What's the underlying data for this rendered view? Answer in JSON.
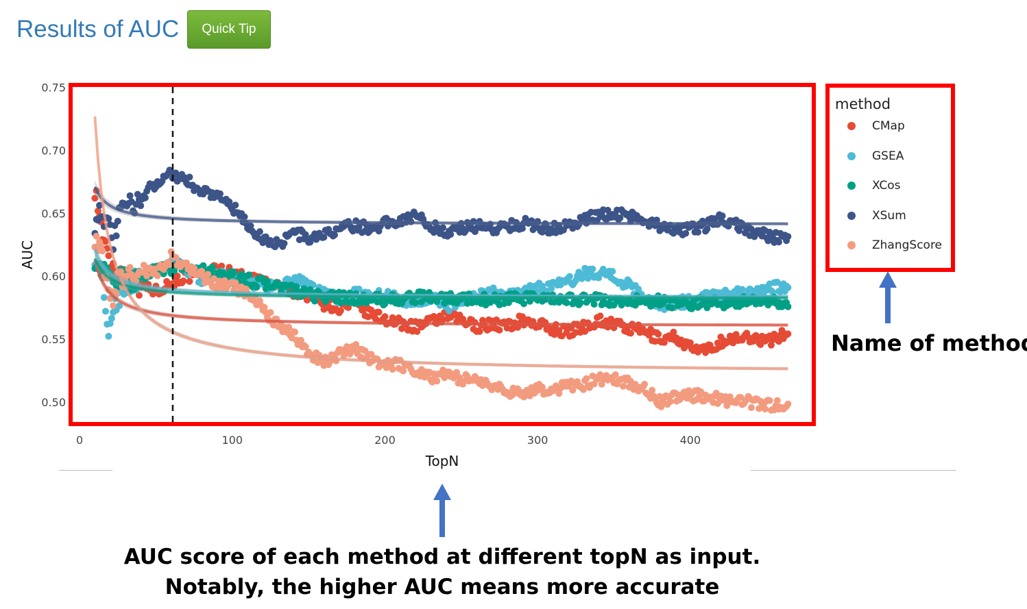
{
  "header": {
    "title": "Results of AUC",
    "quick_tip_label": "Quick Tip"
  },
  "annotations": {
    "legend_note": "Name of method",
    "auc_note_line1": "AUC score of each method at different topN as input.",
    "auc_note_line2": "Notably, the higher AUC means more accurate"
  },
  "colors": {
    "highlight_box": "#ff0000",
    "arrow": "#4472c4",
    "title": "#337ab7",
    "button": "#6aab32"
  },
  "chart_data": {
    "type": "scatter",
    "xlabel": "TopN",
    "ylabel": "AUC",
    "xlim": [
      -5,
      480
    ],
    "ylim": [
      0.483,
      0.752
    ],
    "x_ticks": [
      0,
      100,
      200,
      300,
      400
    ],
    "x_tick_labels": [
      "0",
      "100",
      "200",
      "300",
      "400"
    ],
    "y_ticks": [
      0.5,
      0.55,
      0.6,
      0.65,
      0.7,
      0.75
    ],
    "y_tick_labels": [
      "0.50",
      "0.55",
      "0.60",
      "0.65",
      "0.70",
      "0.75"
    ],
    "grid": false,
    "legend_title": "method",
    "legend_position": "right",
    "vline": {
      "x": 61,
      "style": "dashed"
    },
    "series": [
      {
        "name": "CMap",
        "color": "#e64b35",
        "points": [
          [
            10,
            0.671
          ],
          [
            14,
            0.64
          ],
          [
            18,
            0.615
          ],
          [
            24,
            0.605
          ],
          [
            30,
            0.598
          ],
          [
            40,
            0.593
          ],
          [
            50,
            0.588
          ],
          [
            60,
            0.595
          ],
          [
            70,
            0.6
          ],
          [
            80,
            0.598
          ],
          [
            90,
            0.607
          ],
          [
            100,
            0.602
          ],
          [
            110,
            0.598
          ],
          [
            120,
            0.596
          ],
          [
            130,
            0.592
          ],
          [
            140,
            0.588
          ],
          [
            150,
            0.585
          ],
          [
            160,
            0.578
          ],
          [
            170,
            0.575
          ],
          [
            180,
            0.577
          ],
          [
            190,
            0.57
          ],
          [
            200,
            0.566
          ],
          [
            210,
            0.562
          ],
          [
            220,
            0.56
          ],
          [
            230,
            0.563
          ],
          [
            240,
            0.568
          ],
          [
            250,
            0.565
          ],
          [
            260,
            0.56
          ],
          [
            270,
            0.562
          ],
          [
            280,
            0.56
          ],
          [
            290,
            0.565
          ],
          [
            300,
            0.562
          ],
          [
            310,
            0.558
          ],
          [
            320,
            0.556
          ],
          [
            330,
            0.56
          ],
          [
            340,
            0.565
          ],
          [
            350,
            0.562
          ],
          [
            360,
            0.558
          ],
          [
            370,
            0.556
          ],
          [
            380,
            0.55
          ],
          [
            390,
            0.552
          ],
          [
            400,
            0.543
          ],
          [
            410,
            0.54
          ],
          [
            420,
            0.548
          ],
          [
            430,
            0.55
          ],
          [
            440,
            0.552
          ],
          [
            450,
            0.548
          ],
          [
            460,
            0.553
          ],
          [
            464,
            0.553
          ]
        ],
        "fit": {
          "a": 0.56,
          "b": 0.53
        }
      },
      {
        "name": "GSEA",
        "color": "#4dbbd5",
        "points": [
          [
            10,
            0.618
          ],
          [
            14,
            0.603
          ],
          [
            18,
            0.555
          ],
          [
            22,
            0.572
          ],
          [
            26,
            0.585
          ],
          [
            30,
            0.592
          ],
          [
            40,
            0.598
          ],
          [
            50,
            0.605
          ],
          [
            60,
            0.61
          ],
          [
            70,
            0.606
          ],
          [
            80,
            0.597
          ],
          [
            90,
            0.601
          ],
          [
            100,
            0.597
          ],
          [
            110,
            0.596
          ],
          [
            120,
            0.592
          ],
          [
            130,
            0.59
          ],
          [
            140,
            0.598
          ],
          [
            150,
            0.592
          ],
          [
            160,
            0.587
          ],
          [
            170,
            0.582
          ],
          [
            180,
            0.586
          ],
          [
            190,
            0.584
          ],
          [
            200,
            0.585
          ],
          [
            210,
            0.582
          ],
          [
            220,
            0.578
          ],
          [
            230,
            0.584
          ],
          [
            240,
            0.576
          ],
          [
            250,
            0.58
          ],
          [
            260,
            0.585
          ],
          [
            270,
            0.587
          ],
          [
            280,
            0.584
          ],
          [
            290,
            0.588
          ],
          [
            300,
            0.59
          ],
          [
            310,
            0.593
          ],
          [
            320,
            0.595
          ],
          [
            330,
            0.602
          ],
          [
            340,
            0.603
          ],
          [
            350,
            0.6
          ],
          [
            360,
            0.592
          ],
          [
            370,
            0.584
          ],
          [
            380,
            0.577
          ],
          [
            390,
            0.579
          ],
          [
            400,
            0.58
          ],
          [
            410,
            0.583
          ],
          [
            420,
            0.585
          ],
          [
            430,
            0.586
          ],
          [
            440,
            0.588
          ],
          [
            450,
            0.59
          ],
          [
            460,
            0.592
          ],
          [
            464,
            0.592
          ]
        ],
        "fit": {
          "a": 0.583,
          "b": 0.38
        }
      },
      {
        "name": "XCos",
        "color": "#00a087",
        "points": [
          [
            10,
            0.615
          ],
          [
            14,
            0.605
          ],
          [
            18,
            0.6
          ],
          [
            24,
            0.598
          ],
          [
            30,
            0.596
          ],
          [
            40,
            0.6
          ],
          [
            50,
            0.606
          ],
          [
            60,
            0.605
          ],
          [
            70,
            0.608
          ],
          [
            80,
            0.605
          ],
          [
            90,
            0.602
          ],
          [
            100,
            0.599
          ],
          [
            110,
            0.597
          ],
          [
            120,
            0.594
          ],
          [
            130,
            0.592
          ],
          [
            140,
            0.588
          ],
          [
            150,
            0.585
          ],
          [
            160,
            0.584
          ],
          [
            170,
            0.583
          ],
          [
            180,
            0.582
          ],
          [
            190,
            0.582
          ],
          [
            200,
            0.581
          ],
          [
            210,
            0.582
          ],
          [
            220,
            0.583
          ],
          [
            230,
            0.584
          ],
          [
            240,
            0.582
          ],
          [
            250,
            0.582
          ],
          [
            260,
            0.582
          ],
          [
            270,
            0.581
          ],
          [
            280,
            0.582
          ],
          [
            290,
            0.582
          ],
          [
            300,
            0.582
          ],
          [
            310,
            0.581
          ],
          [
            320,
            0.582
          ],
          [
            330,
            0.581
          ],
          [
            340,
            0.581
          ],
          [
            350,
            0.58
          ],
          [
            360,
            0.58
          ],
          [
            370,
            0.58
          ],
          [
            380,
            0.58
          ],
          [
            390,
            0.578
          ],
          [
            400,
            0.578
          ],
          [
            410,
            0.579
          ],
          [
            420,
            0.579
          ],
          [
            430,
            0.579
          ],
          [
            440,
            0.58
          ],
          [
            450,
            0.579
          ],
          [
            460,
            0.579
          ],
          [
            464,
            0.579
          ]
        ],
        "fit": {
          "a": 0.582,
          "b": 0.32
        }
      },
      {
        "name": "XSum",
        "color": "#3c5488",
        "points": [
          [
            10,
            0.643
          ],
          [
            14,
            0.655
          ],
          [
            18,
            0.64
          ],
          [
            22,
            0.627
          ],
          [
            26,
            0.648
          ],
          [
            30,
            0.655
          ],
          [
            40,
            0.66
          ],
          [
            50,
            0.675
          ],
          [
            60,
            0.682
          ],
          [
            70,
            0.676
          ],
          [
            80,
            0.668
          ],
          [
            90,
            0.665
          ],
          [
            100,
            0.655
          ],
          [
            110,
            0.64
          ],
          [
            120,
            0.63
          ],
          [
            130,
            0.625
          ],
          [
            140,
            0.635
          ],
          [
            150,
            0.63
          ],
          [
            160,
            0.632
          ],
          [
            170,
            0.638
          ],
          [
            180,
            0.64
          ],
          [
            190,
            0.638
          ],
          [
            200,
            0.642
          ],
          [
            210,
            0.645
          ],
          [
            220,
            0.648
          ],
          [
            230,
            0.64
          ],
          [
            240,
            0.635
          ],
          [
            250,
            0.638
          ],
          [
            260,
            0.64
          ],
          [
            270,
            0.638
          ],
          [
            280,
            0.64
          ],
          [
            290,
            0.642
          ],
          [
            300,
            0.64
          ],
          [
            310,
            0.638
          ],
          [
            320,
            0.64
          ],
          [
            330,
            0.645
          ],
          [
            340,
            0.648
          ],
          [
            350,
            0.65
          ],
          [
            360,
            0.648
          ],
          [
            370,
            0.645
          ],
          [
            380,
            0.64
          ],
          [
            390,
            0.635
          ],
          [
            400,
            0.638
          ],
          [
            410,
            0.64
          ],
          [
            420,
            0.645
          ],
          [
            430,
            0.642
          ],
          [
            440,
            0.635
          ],
          [
            450,
            0.632
          ],
          [
            460,
            0.63
          ],
          [
            464,
            0.628
          ]
        ],
        "fit": {
          "a": 0.641,
          "b": 0.3
        }
      },
      {
        "name": "ZhangScore",
        "color": "#f39b7f",
        "points": [
          [
            10,
            0.632
          ],
          [
            14,
            0.618
          ],
          [
            18,
            0.592
          ],
          [
            22,
            0.585
          ],
          [
            26,
            0.598
          ],
          [
            30,
            0.6
          ],
          [
            40,
            0.605
          ],
          [
            50,
            0.602
          ],
          [
            60,
            0.615
          ],
          [
            70,
            0.608
          ],
          [
            80,
            0.6
          ],
          [
            90,
            0.593
          ],
          [
            100,
            0.592
          ],
          [
            110,
            0.585
          ],
          [
            120,
            0.575
          ],
          [
            130,
            0.56
          ],
          [
            140,
            0.553
          ],
          [
            150,
            0.54
          ],
          [
            160,
            0.532
          ],
          [
            170,
            0.538
          ],
          [
            180,
            0.542
          ],
          [
            190,
            0.535
          ],
          [
            200,
            0.53
          ],
          [
            210,
            0.53
          ],
          [
            220,
            0.525
          ],
          [
            230,
            0.52
          ],
          [
            240,
            0.522
          ],
          [
            250,
            0.518
          ],
          [
            260,
            0.518
          ],
          [
            270,
            0.512
          ],
          [
            280,
            0.508
          ],
          [
            290,
            0.508
          ],
          [
            300,
            0.51
          ],
          [
            310,
            0.51
          ],
          [
            320,
            0.512
          ],
          [
            330,
            0.514
          ],
          [
            340,
            0.518
          ],
          [
            350,
            0.518
          ],
          [
            360,
            0.515
          ],
          [
            370,
            0.51
          ],
          [
            380,
            0.5
          ],
          [
            390,
            0.505
          ],
          [
            400,
            0.505
          ],
          [
            410,
            0.505
          ],
          [
            420,
            0.502
          ],
          [
            430,
            0.5
          ],
          [
            440,
            0.5
          ],
          [
            450,
            0.498
          ],
          [
            460,
            0.497
          ],
          [
            464,
            0.497
          ]
        ],
        "fit": {
          "a": 0.522,
          "b": 2.05
        }
      }
    ]
  }
}
